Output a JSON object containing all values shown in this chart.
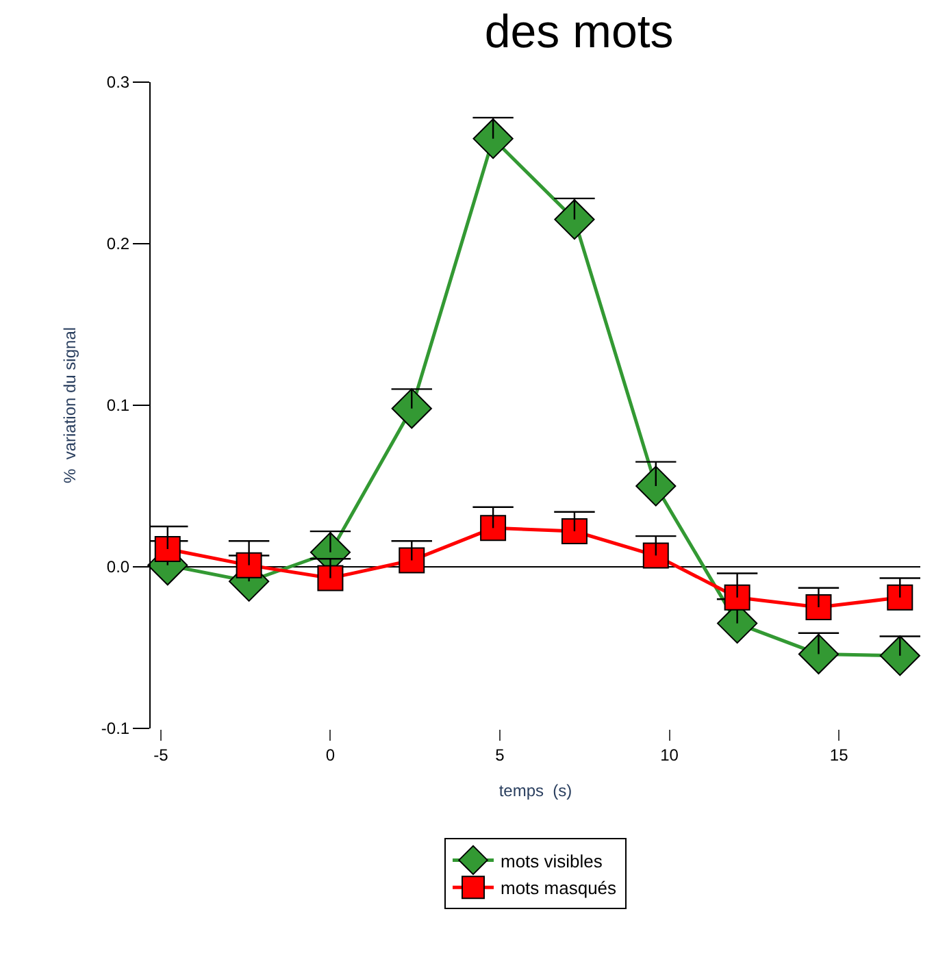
{
  "chart_data": {
    "type": "line",
    "title": "des mots",
    "xlabel": "temps  (s)",
    "ylabel": "%  variation du signal",
    "x": [
      -4.8,
      -2.4,
      0,
      2.4,
      4.8,
      7.2,
      9.6,
      12,
      14.4,
      16.8
    ],
    "xlim": [
      -5.3,
      17.4
    ],
    "xticks": [
      -5,
      0,
      5,
      10,
      15
    ],
    "ylim": [
      -0.1,
      0.3
    ],
    "yticks": [
      -0.1,
      {
        "value": 0,
        "label": "0.0"
      },
      0.1,
      0.2,
      0.3
    ],
    "legend": "bottom",
    "ref_lines": [
      {
        "axis": "y",
        "value": 0,
        "label": null,
        "color": "#000000"
      }
    ],
    "series": [
      {
        "name": "mots visibles",
        "color": "#339933",
        "marker": "diamond",
        "values": [
          0.001,
          -0.009,
          0.009,
          0.098,
          0.265,
          0.215,
          0.05,
          -0.035,
          -0.054,
          -0.055
        ],
        "errors": [
          [
            0.001,
            0.016
          ],
          [
            -0.009,
            0.007
          ],
          [
            0.009,
            0.022
          ],
          [
            0.098,
            0.11
          ],
          [
            0.265,
            0.278
          ],
          [
            0.215,
            0.228
          ],
          [
            0.05,
            0.065
          ],
          [
            -0.035,
            -0.02
          ],
          [
            -0.054,
            -0.041
          ],
          [
            -0.055,
            -0.043
          ]
        ]
      },
      {
        "name": "mots masqués",
        "color": "#ff0000",
        "marker": "square",
        "values": [
          0.011,
          0.001,
          -0.007,
          0.004,
          0.024,
          0.022,
          0.007,
          -0.019,
          -0.025,
          -0.019
        ],
        "errors": [
          [
            0.011,
            0.025
          ],
          [
            0.001,
            0.016
          ],
          [
            -0.007,
            0.005
          ],
          [
            0.004,
            0.016
          ],
          [
            0.024,
            0.037
          ],
          [
            0.022,
            0.034
          ],
          [
            0.007,
            0.019
          ],
          [
            -0.019,
            -0.004
          ],
          [
            -0.025,
            -0.013
          ],
          [
            -0.019,
            -0.007
          ]
        ]
      }
    ]
  }
}
